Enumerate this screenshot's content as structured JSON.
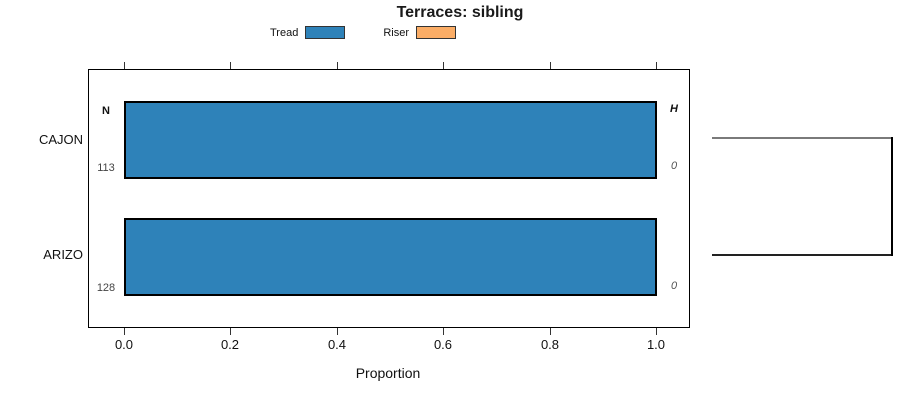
{
  "title": "Terraces: sibling",
  "colors": {
    "tread": "#2e82b9",
    "riser": "#fbad66",
    "bar_border": "#000000"
  },
  "legend": {
    "items": [
      {
        "label": "Tread"
      },
      {
        "label": "Riser"
      }
    ]
  },
  "headers": {
    "n": "N",
    "h": "H"
  },
  "rows": [
    {
      "category": "CAJON",
      "n": "113",
      "h": "0"
    },
    {
      "category": "ARIZO",
      "n": "128",
      "h": "0"
    }
  ],
  "axis": {
    "label": "Proportion",
    "ticks": [
      "0.0",
      "0.2",
      "0.4",
      "0.6",
      "0.8",
      "1.0"
    ]
  },
  "chart_data": {
    "type": "bar",
    "orientation": "horizontal",
    "title": "Terraces: sibling",
    "xlabel": "Proportion",
    "xlim": [
      0,
      1.04
    ],
    "xticks": [
      0.0,
      0.2,
      0.4,
      0.6,
      0.8,
      1.0
    ],
    "grid": false,
    "legend_position": "top-center",
    "categories": [
      "CAJON",
      "ARIZO"
    ],
    "series": [
      {
        "name": "Tread",
        "color": "#2e82b9",
        "values": [
          1.0,
          1.0
        ]
      },
      {
        "name": "Riser",
        "color": "#fbad66",
        "values": [
          0.0,
          0.0
        ]
      }
    ],
    "row_annotations": {
      "left_header": "N",
      "right_header": "H",
      "left_values": [
        113,
        128
      ],
      "right_values": [
        0,
        0
      ]
    },
    "right_marginal": "dendrogram bracket joining CAJON and ARIZO at full width"
  }
}
